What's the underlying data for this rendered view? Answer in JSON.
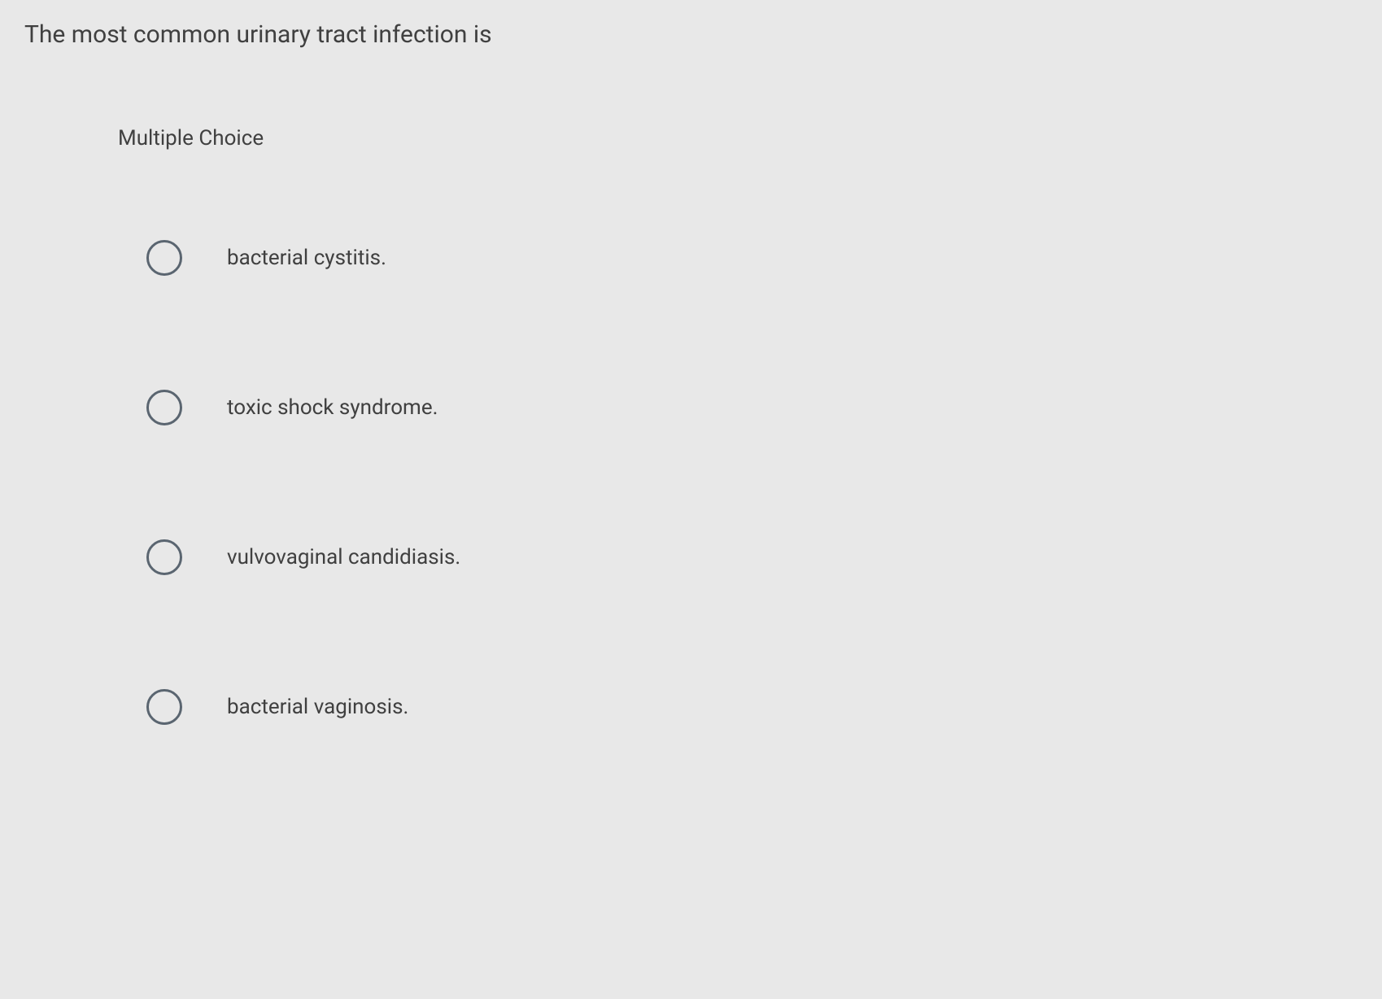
{
  "question": {
    "text": "The most common urinary tract infection is",
    "section_label": "Multiple Choice"
  },
  "options": [
    {
      "label": "bacterial cystitis."
    },
    {
      "label": "toxic shock syndrome."
    },
    {
      "label": "vulvovaginal candidiasis."
    },
    {
      "label": "bacterial vaginosis."
    }
  ],
  "colors": {
    "background": "#e8e8e8",
    "text": "#404040",
    "radio_border": "#5a6570"
  }
}
